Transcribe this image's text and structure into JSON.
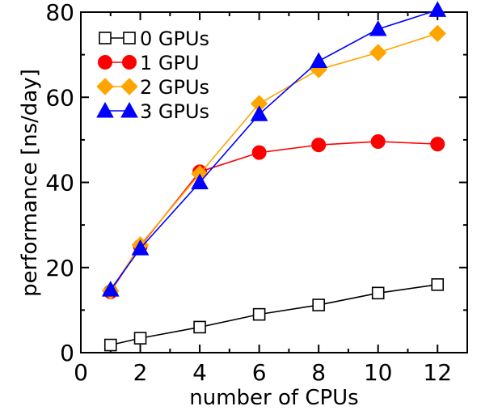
{
  "chart_data": {
    "type": "line",
    "title": "",
    "xlabel": "number of CPUs",
    "ylabel": "performance [ns/day]",
    "xlim": [
      0,
      13
    ],
    "ylim": [
      0,
      80
    ],
    "xticks": [
      0,
      2,
      4,
      6,
      8,
      10,
      12
    ],
    "yticks": [
      0,
      20,
      40,
      60,
      80
    ],
    "grid": false,
    "legend_position": "top-left",
    "series": [
      {
        "name": "0 GPUs",
        "color": "#000000",
        "fill": "#ffffff",
        "marker": "square",
        "x": [
          1,
          2,
          4,
          6,
          8,
          10,
          12
        ],
        "y": [
          1.8,
          3.4,
          6.0,
          9.0,
          11.2,
          14.0,
          16.0
        ]
      },
      {
        "name": "1 GPU",
        "color": "#ff0000",
        "fill": "#ff0000",
        "marker": "circle",
        "x": [
          1,
          2,
          4,
          6,
          8,
          10,
          12
        ],
        "y": [
          14.3,
          25.0,
          42.5,
          47.0,
          48.8,
          49.6,
          49.0
        ]
      },
      {
        "name": "2 GPUs",
        "color": "#ffa500",
        "fill": "#ffa500",
        "marker": "diamond",
        "x": [
          1,
          2,
          4,
          6,
          8,
          10,
          12
        ],
        "y": [
          14.5,
          25.3,
          42.0,
          58.5,
          66.5,
          70.5,
          75.0
        ]
      },
      {
        "name": "3 GPUs",
        "color": "#0000ff",
        "fill": "#0000ff",
        "marker": "triangle",
        "x": [
          1,
          2,
          4,
          6,
          8,
          10,
          12
        ],
        "y": [
          14.8,
          24.5,
          40.0,
          56.0,
          68.5,
          76.0,
          80.5
        ]
      }
    ]
  }
}
